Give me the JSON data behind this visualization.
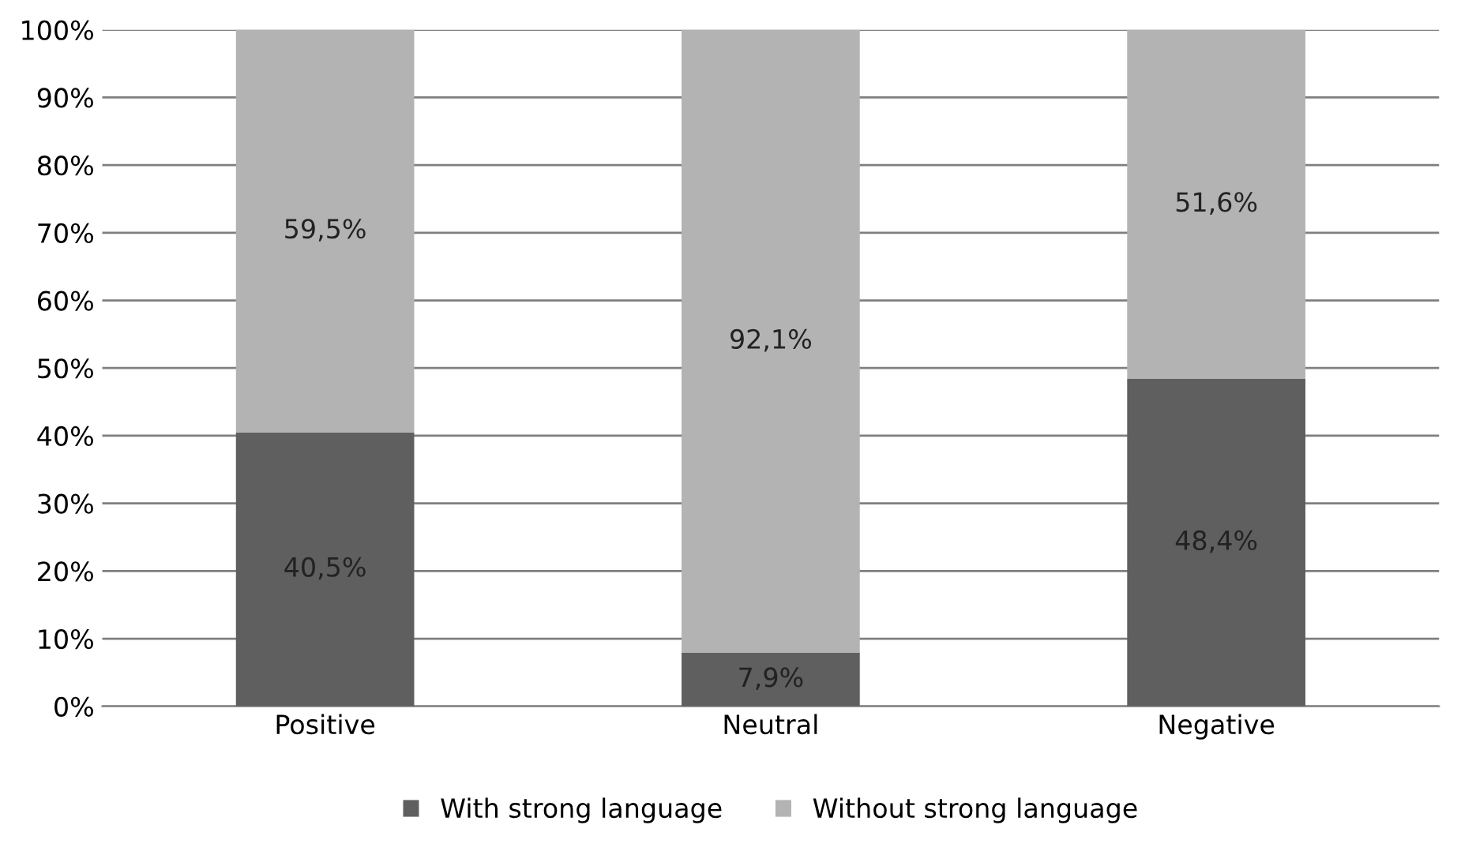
{
  "chart_data": {
    "type": "bar",
    "stacked": true,
    "categories": [
      "Positive",
      "Neutral",
      "Negative"
    ],
    "series": [
      {
        "name": "With strong language",
        "color": "#5f5f5f",
        "values": [
          40.5,
          7.9,
          48.4
        ],
        "value_labels": [
          "40,5%",
          "7,9%",
          "48,4%"
        ]
      },
      {
        "name": "Without strong language",
        "color": "#b3b3b3",
        "values": [
          59.5,
          92.1,
          51.6
        ],
        "value_labels": [
          "59,5%",
          "92,1%",
          "51,6%"
        ]
      }
    ],
    "ylim": [
      0,
      100
    ],
    "yticks": [
      {
        "value": 0,
        "label": "0%"
      },
      {
        "value": 10,
        "label": "10%"
      },
      {
        "value": 20,
        "label": "20%"
      },
      {
        "value": 30,
        "label": "30%"
      },
      {
        "value": 40,
        "label": "40%"
      },
      {
        "value": 50,
        "label": "50%"
      },
      {
        "value": 60,
        "label": "60%"
      },
      {
        "value": 70,
        "label": "70%"
      },
      {
        "value": 80,
        "label": "80%"
      },
      {
        "value": 90,
        "label": "90%"
      },
      {
        "value": 100,
        "label": "100%"
      }
    ],
    "grid": "y",
    "legend": "bottom"
  }
}
